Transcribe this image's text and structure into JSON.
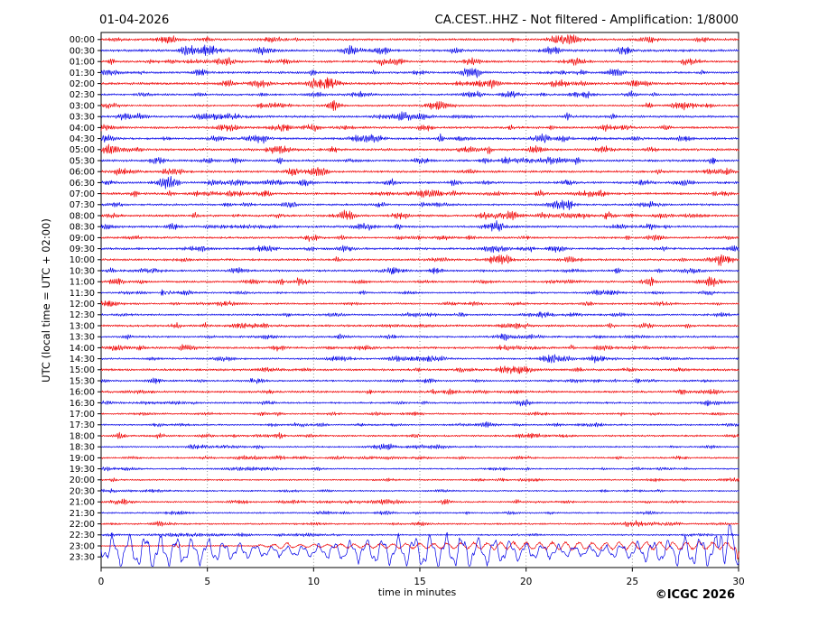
{
  "header": {
    "date": "01-04-2026",
    "station": "CA.CEST..HHZ - Not filtered - Amplification: 1/8000"
  },
  "footer": {
    "credit": "©ICGC 2026"
  },
  "chart_data": {
    "type": "line",
    "variant": "helicorder-seismogram",
    "title_left": "01-04-2026",
    "title_right": "CA.CEST..HHZ - Not filtered - Amplification: 1/8000",
    "xlabel": "time in minutes",
    "ylabel": "UTC (local time = UTC + 02:00)",
    "xlim": [
      0,
      30
    ],
    "x_ticks": [
      0,
      5,
      10,
      15,
      20,
      25,
      30
    ],
    "minutes_per_row": 30,
    "grid": {
      "vertical_dotted_at": [
        5,
        10,
        15,
        20,
        25
      ]
    },
    "legend": "none",
    "colors": {
      "red": "#f00000",
      "blue": "#0000e8",
      "grid": "#777777",
      "frame": "#000000"
    },
    "rows": [
      {
        "time": "00:00",
        "color": "red",
        "noise_level": 1.2,
        "burst_level": 3.0
      },
      {
        "time": "00:30",
        "color": "blue",
        "noise_level": 1.3,
        "burst_level": 3.2
      },
      {
        "time": "01:00",
        "color": "red",
        "noise_level": 1.2,
        "burst_level": 3.0
      },
      {
        "time": "01:30",
        "color": "blue",
        "noise_level": 1.2,
        "burst_level": 2.8
      },
      {
        "time": "02:00",
        "color": "red",
        "noise_level": 1.3,
        "burst_level": 3.2
      },
      {
        "time": "02:30",
        "color": "blue",
        "noise_level": 1.1,
        "burst_level": 2.6
      },
      {
        "time": "03:00",
        "color": "red",
        "noise_level": 1.0,
        "burst_level": 2.4
      },
      {
        "time": "03:30",
        "color": "blue",
        "noise_level": 1.2,
        "burst_level": 3.0
      },
      {
        "time": "04:00",
        "color": "red",
        "noise_level": 1.2,
        "burst_level": 3.0
      },
      {
        "time": "04:30",
        "color": "blue",
        "noise_level": 1.2,
        "burst_level": 3.4
      },
      {
        "time": "05:00",
        "color": "red",
        "noise_level": 1.3,
        "burst_level": 3.4
      },
      {
        "time": "05:30",
        "color": "blue",
        "noise_level": 1.2,
        "burst_level": 2.8
      },
      {
        "time": "06:00",
        "color": "red",
        "noise_level": 1.2,
        "burst_level": 2.8
      },
      {
        "time": "06:30",
        "color": "blue",
        "noise_level": 1.2,
        "burst_level": 2.6
      },
      {
        "time": "07:00",
        "color": "red",
        "noise_level": 1.2,
        "burst_level": 2.8
      },
      {
        "time": "07:30",
        "color": "blue",
        "noise_level": 1.1,
        "burst_level": 2.6
      },
      {
        "time": "08:00",
        "color": "red",
        "noise_level": 1.2,
        "burst_level": 2.8
      },
      {
        "time": "08:30",
        "color": "blue",
        "noise_level": 1.2,
        "burst_level": 3.0
      },
      {
        "time": "09:00",
        "color": "red",
        "noise_level": 1.1,
        "burst_level": 2.6
      },
      {
        "time": "09:30",
        "color": "blue",
        "noise_level": 1.2,
        "burst_level": 2.8
      },
      {
        "time": "10:00",
        "color": "red",
        "noise_level": 1.2,
        "burst_level": 2.6
      },
      {
        "time": "10:30",
        "color": "blue",
        "noise_level": 1.1,
        "burst_level": 2.6
      },
      {
        "time": "11:00",
        "color": "red",
        "noise_level": 1.1,
        "burst_level": 2.4
      },
      {
        "time": "11:30",
        "color": "blue",
        "noise_level": 0.9,
        "burst_level": 1.8,
        "special": "spike"
      },
      {
        "time": "12:00",
        "color": "red",
        "noise_level": 1.0,
        "burst_level": 2.0
      },
      {
        "time": "12:30",
        "color": "blue",
        "noise_level": 1.0,
        "burst_level": 2.0
      },
      {
        "time": "13:00",
        "color": "red",
        "noise_level": 1.2,
        "burst_level": 2.2
      },
      {
        "time": "13:30",
        "color": "blue",
        "noise_level": 1.1,
        "burst_level": 2.0
      },
      {
        "time": "14:00",
        "color": "red",
        "noise_level": 1.2,
        "burst_level": 2.2
      },
      {
        "time": "14:30",
        "color": "blue",
        "noise_level": 1.0,
        "burst_level": 2.0
      },
      {
        "time": "15:00",
        "color": "red",
        "noise_level": 1.2,
        "burst_level": 2.2
      },
      {
        "time": "15:30",
        "color": "blue",
        "noise_level": 1.0,
        "burst_level": 1.8
      },
      {
        "time": "16:00",
        "color": "red",
        "noise_level": 1.2,
        "burst_level": 2.0
      },
      {
        "time": "16:30",
        "color": "blue",
        "noise_level": 1.0,
        "burst_level": 1.8
      },
      {
        "time": "17:00",
        "color": "red",
        "noise_level": 0.9,
        "burst_level": 1.6
      },
      {
        "time": "17:30",
        "color": "blue",
        "noise_level": 0.9,
        "burst_level": 1.6
      },
      {
        "time": "18:00",
        "color": "red",
        "noise_level": 1.0,
        "burst_level": 1.8
      },
      {
        "time": "18:30",
        "color": "blue",
        "noise_level": 0.9,
        "burst_level": 1.6
      },
      {
        "time": "19:00",
        "color": "red",
        "noise_level": 0.9,
        "burst_level": 1.5
      },
      {
        "time": "19:30",
        "color": "blue",
        "noise_level": 0.8,
        "burst_level": 1.4
      },
      {
        "time": "20:00",
        "color": "red",
        "noise_level": 0.8,
        "burst_level": 1.5
      },
      {
        "time": "20:30",
        "color": "blue",
        "noise_level": 0.8,
        "burst_level": 1.4
      },
      {
        "time": "21:00",
        "color": "red",
        "noise_level": 0.9,
        "burst_level": 1.5
      },
      {
        "time": "21:30",
        "color": "blue",
        "noise_level": 0.8,
        "burst_level": 1.4
      },
      {
        "time": "22:00",
        "color": "red",
        "noise_level": 0.9,
        "burst_level": 1.5
      },
      {
        "time": "22:30",
        "color": "blue",
        "noise_level": 0.8,
        "burst_level": 1.2
      },
      {
        "time": "23:00",
        "color": "red",
        "noise_level": 0.6,
        "burst_level": 1.0,
        "special": "tremor"
      },
      {
        "time": "23:30",
        "color": "blue",
        "noise_level": 14.0,
        "burst_level": 6.0,
        "special": "event"
      }
    ],
    "events": [
      {
        "row": "11:30",
        "minute": 2.9,
        "kind": "sharp transient spike"
      },
      {
        "row": "23:00",
        "from_minute": 7.5,
        "kind": "emergent oscillation growing in amplitude to end of hour, sharp drop at minute 30"
      },
      {
        "row": "23:30",
        "from_minute": 0,
        "kind": "large-amplitude low-frequency signal clipped at plot bottom, tall spikes near minute 29.5"
      }
    ]
  }
}
